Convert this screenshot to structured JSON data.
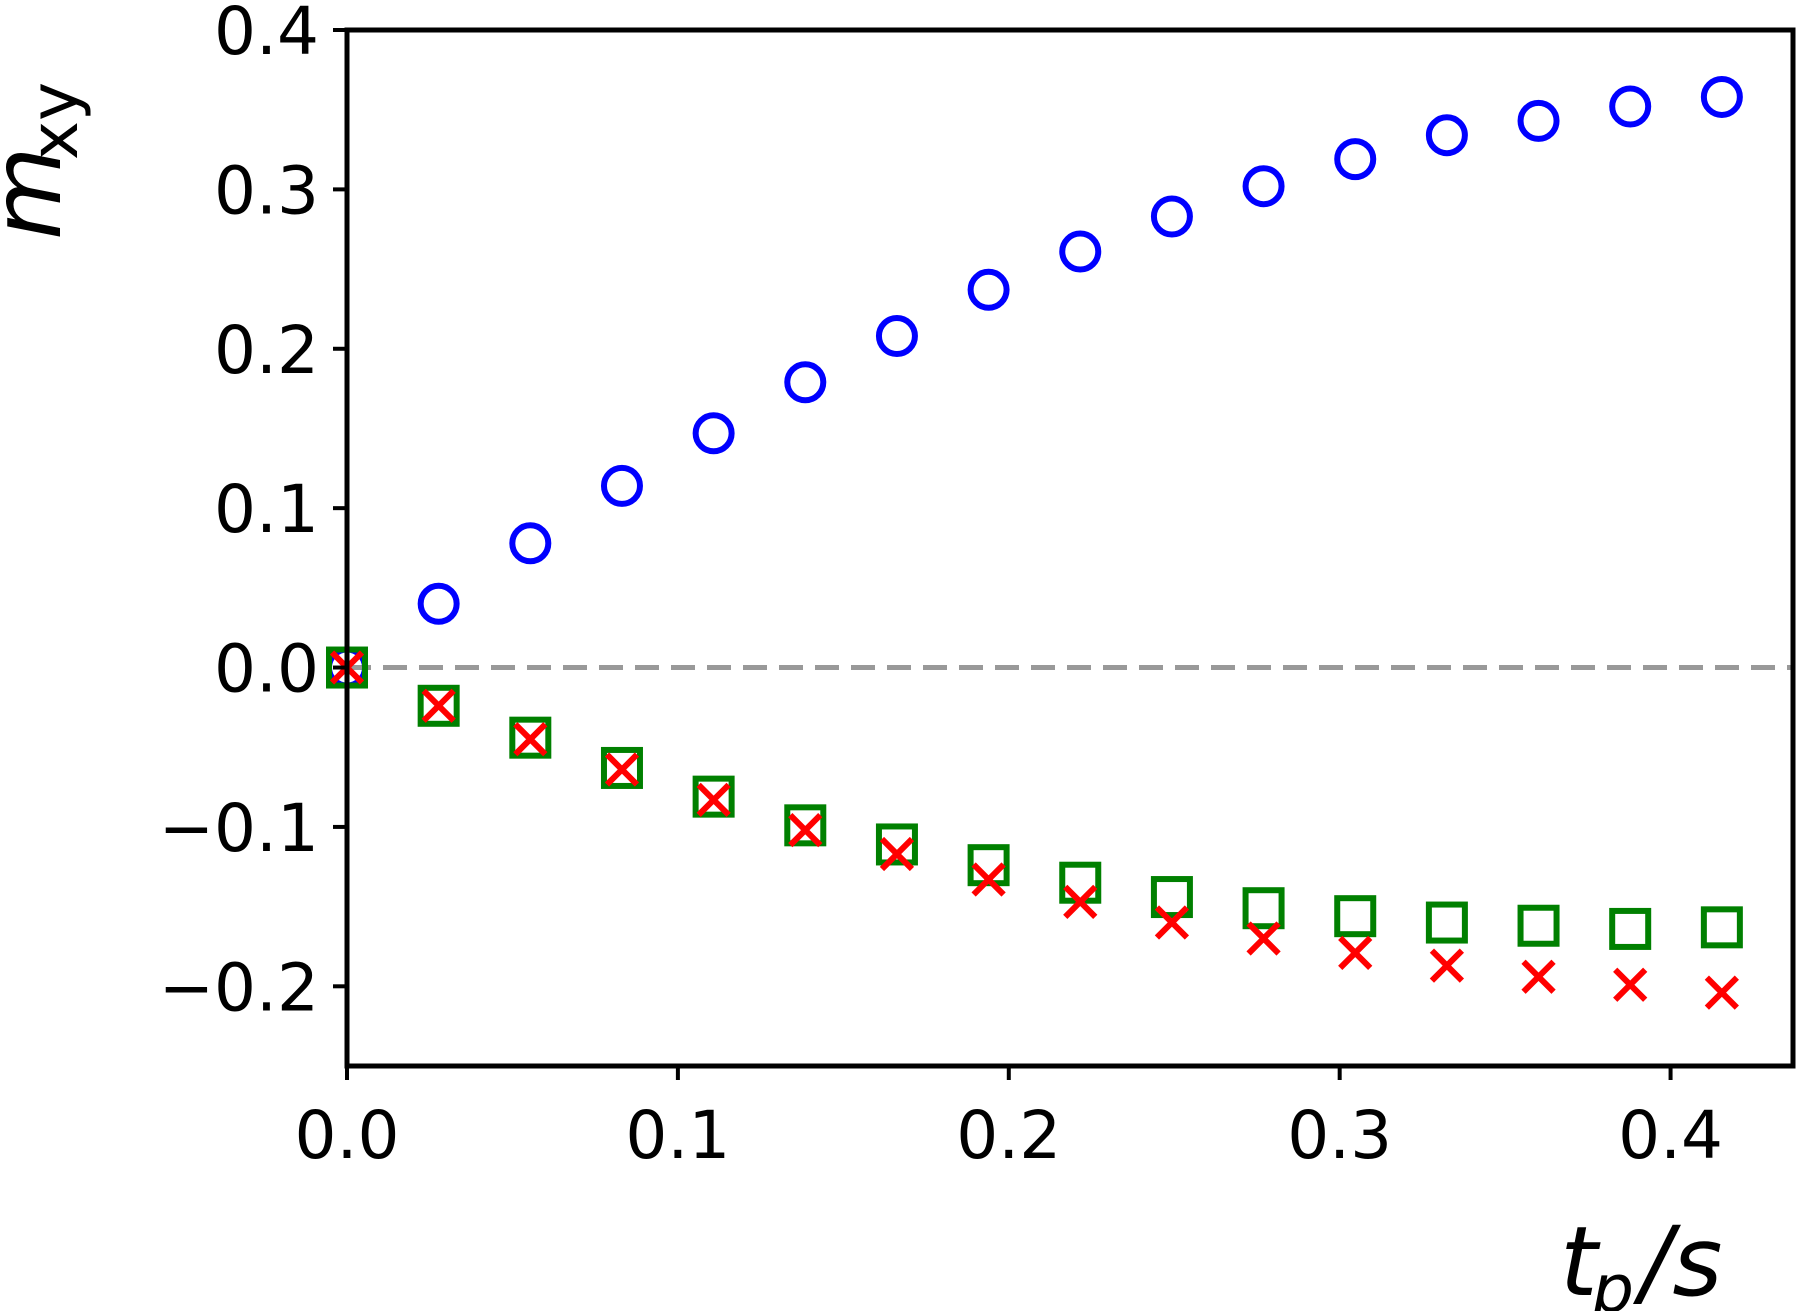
{
  "chart_data": {
    "type": "scatter",
    "xlabel": {
      "main": "t",
      "sub": "p",
      "rest": "/s"
    },
    "ylabel": {
      "main": "m",
      "sub": "xy"
    },
    "xlim": [
      0.0,
      0.437
    ],
    "ylim": [
      -0.25,
      0.4
    ],
    "xticks": [
      "0.0",
      "0.1",
      "0.2",
      "0.3",
      "0.4"
    ],
    "xtick_values": [
      0.0,
      0.1,
      0.2,
      0.3,
      0.4
    ],
    "yticks": [
      "−0.2",
      "−0.1",
      "0.0",
      "0.1",
      "0.2",
      "0.3",
      "0.4"
    ],
    "ytick_values": [
      -0.2,
      -0.1,
      0.0,
      0.1,
      0.2,
      0.3,
      0.4
    ],
    "reference_line": {
      "y": 0.0,
      "style": "dashed",
      "color": "#999999"
    },
    "x": [
      0.0,
      0.0277,
      0.0554,
      0.0831,
      0.1108,
      0.1385,
      0.1662,
      0.1939,
      0.2216,
      0.2493,
      0.277,
      0.3047,
      0.3324,
      0.3601,
      0.3878,
      0.4155
    ],
    "series": [
      {
        "marker": "circle",
        "color": "#0000ff",
        "values": [
          0.0,
          0.04,
          0.078,
          0.114,
          0.147,
          0.179,
          0.208,
          0.237,
          0.261,
          0.283,
          0.302,
          0.319,
          0.334,
          0.343,
          0.352,
          0.358
        ]
      },
      {
        "marker": "square",
        "color": "#008000",
        "values": [
          0.0,
          -0.024,
          -0.044,
          -0.063,
          -0.081,
          -0.099,
          -0.111,
          -0.124,
          -0.135,
          -0.144,
          -0.151,
          -0.156,
          -0.16,
          -0.162,
          -0.164,
          -0.163
        ]
      },
      {
        "marker": "x",
        "color": "#ff0000",
        "values": [
          0.0,
          -0.024,
          -0.045,
          -0.064,
          -0.083,
          -0.102,
          -0.117,
          -0.133,
          -0.147,
          -0.16,
          -0.17,
          -0.179,
          -0.187,
          -0.194,
          -0.199,
          -0.204
        ]
      }
    ]
  }
}
